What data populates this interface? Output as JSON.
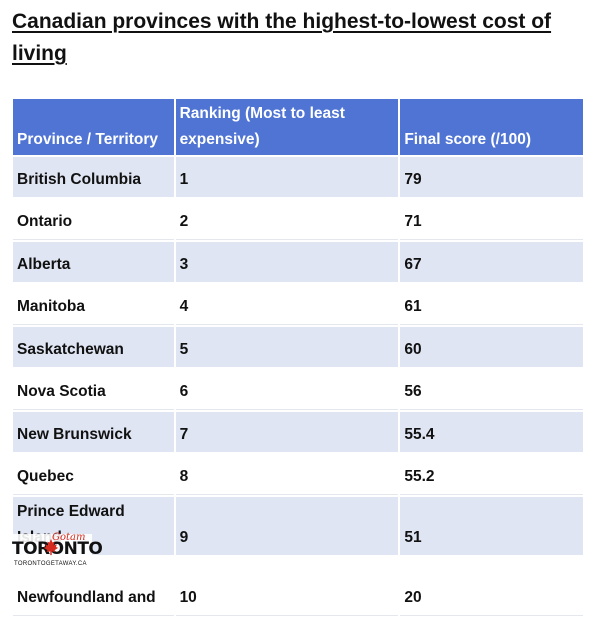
{
  "title": "Canadian provinces with the highest-to-lowest cost of living",
  "table": {
    "headers": [
      "Province / Territory",
      "Ranking (Most to least expensive)",
      "Final score (/100)"
    ],
    "rows": [
      {
        "province": "British Columbia",
        "rank": "1",
        "score": "79"
      },
      {
        "province": "Ontario",
        "rank": "2",
        "score": "71"
      },
      {
        "province": "Alberta",
        "rank": "3",
        "score": "67"
      },
      {
        "province": "Manitoba",
        "rank": "4",
        "score": "61"
      },
      {
        "province": "Saskatchewan",
        "rank": "5",
        "score": "60"
      },
      {
        "province": "Nova Scotia",
        "rank": "6",
        "score": "56"
      },
      {
        "province": "New Brunswick",
        "rank": "7",
        "score": "55.4"
      },
      {
        "province": "Quebec",
        "rank": "8",
        "score": "55.2"
      },
      {
        "province": "Prince Edward Island",
        "rank": "9",
        "score": "51"
      },
      {
        "province": "Newfoundland and",
        "rank": "10",
        "score": "20"
      }
    ]
  },
  "watermark": {
    "brand": "TORONTO",
    "script": "Gotam",
    "site": "TORONTOGETAWAY.CA",
    "leaf_color": "#d52b1e"
  }
}
